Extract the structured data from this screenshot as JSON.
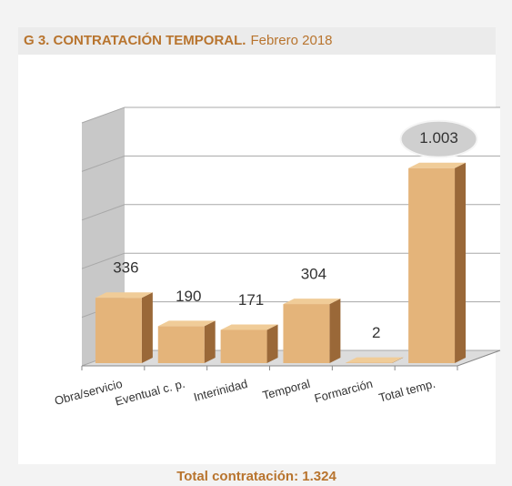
{
  "chart_data": {
    "type": "bar3d",
    "title": "G 3. CONTRATACIÓN TEMPORAL.",
    "subtitle": "Febrero 2018",
    "footer": "Total contratación: 1.324",
    "categories": [
      "Obra/servicio",
      "Eventual c. p.",
      "Interinidad",
      "Temporal",
      "Formarción",
      "Total temp."
    ],
    "values": [
      336,
      190,
      171,
      304,
      2,
      1003
    ],
    "value_labels": [
      "336",
      "190",
      "171",
      "304",
      "2",
      "1.003"
    ],
    "color": "#e4b47a",
    "ylim": [
      0,
      1250
    ],
    "yticks": [
      0,
      250,
      500,
      750,
      1000,
      1250
    ],
    "grid": true
  }
}
